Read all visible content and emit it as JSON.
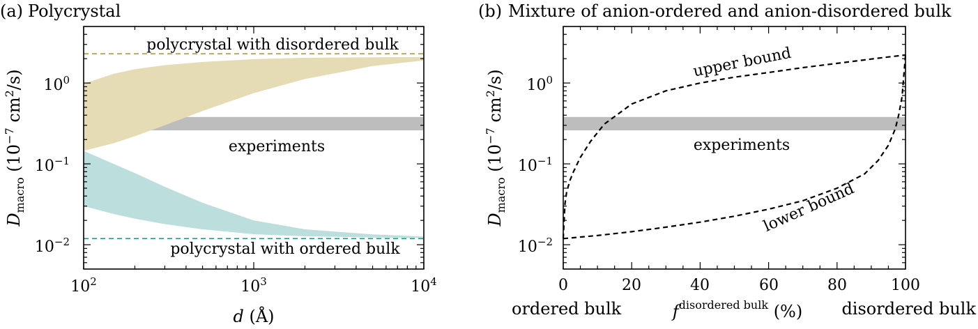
{
  "chart_data": [
    {
      "panel_label": "(a)",
      "title": "Polycrystal",
      "type": "area",
      "xlabel": {
        "symbol": "d",
        "unit": "(Å)"
      },
      "ylabel": {
        "symbol": "D",
        "subscript": "macro",
        "unit_prefix": "(10",
        "unit_exp": "−7",
        "unit_mid": " cm",
        "unit_exp2": "2",
        "unit_suffix": "/s)"
      },
      "xscale": "log",
      "yscale": "log",
      "xlim": [
        100,
        10000
      ],
      "ylim": [
        0.005,
        5
      ],
      "xticks": [
        {
          "value": 100,
          "base": "10",
          "exp": "2"
        },
        {
          "value": 1000,
          "base": "10",
          "exp": "3"
        },
        {
          "value": 10000,
          "base": "10",
          "exp": "4"
        }
      ],
      "yticks": [
        {
          "value": 0.01,
          "base": "10",
          "exp": "−2"
        },
        {
          "value": 0.1,
          "base": "10",
          "exp": "−1"
        },
        {
          "value": 1,
          "base": "10",
          "exp": "0"
        }
      ],
      "experiments_band": {
        "low": 0.26,
        "high": 0.38,
        "label": "experiments",
        "color": "#bdbdbd"
      },
      "series": [
        {
          "name": "polycrystal with disordered bulk",
          "color": "#e5dcb5",
          "limit": 2.3,
          "limit_color": "#a6942a",
          "x": [
            100,
            150,
            200,
            300,
            500,
            1000,
            2000,
            5000,
            10000
          ],
          "upper": [
            0.98,
            1.3,
            1.48,
            1.66,
            1.82,
            1.97,
            2.05,
            2.08,
            2.1
          ],
          "lower": [
            0.145,
            0.18,
            0.22,
            0.3,
            0.45,
            0.75,
            1.12,
            1.62,
            1.9
          ]
        },
        {
          "name": "polycrystal with ordered bulk",
          "color": "#bcdedd",
          "limit": 0.0119,
          "limit_color": "#2a8f85",
          "x": [
            100,
            150,
            200,
            300,
            500,
            1000,
            2000,
            5000,
            10000
          ],
          "upper": [
            0.145,
            0.1,
            0.077,
            0.052,
            0.033,
            0.02,
            0.0155,
            0.0134,
            0.0126
          ],
          "lower": [
            0.03,
            0.024,
            0.021,
            0.018,
            0.0155,
            0.0135,
            0.0127,
            0.0123,
            0.0122
          ]
        }
      ]
    },
    {
      "panel_label": "(b)",
      "title": "Mixture of anion-ordered and anion-disordered bulk",
      "type": "line",
      "xlabel": {
        "symbol": "f",
        "superscript": "disordered bulk",
        "unit": "(%)",
        "left_note": "ordered bulk",
        "right_note": "disordered bulk"
      },
      "ylabel": {
        "symbol": "D",
        "subscript": "macro",
        "unit_prefix": "(10",
        "unit_exp": "−7",
        "unit_mid": " cm",
        "unit_exp2": "2",
        "unit_suffix": "/s)"
      },
      "xscale": "linear",
      "yscale": "log",
      "xlim": [
        0,
        100
      ],
      "ylim": [
        0.005,
        5
      ],
      "xticks": [
        0,
        20,
        40,
        60,
        80,
        100
      ],
      "yticks": [
        {
          "value": 0.01,
          "base": "10",
          "exp": "−2"
        },
        {
          "value": 0.1,
          "base": "10",
          "exp": "−1"
        },
        {
          "value": 1,
          "base": "10",
          "exp": "0"
        }
      ],
      "experiments_band": {
        "low": 0.26,
        "high": 0.38,
        "label": "experiments",
        "color": "#bdbdbd"
      },
      "series": [
        {
          "name": "upper bound",
          "x": [
            0,
            0.5,
            1,
            2,
            3,
            5,
            8,
            12,
            20,
            30,
            40,
            50,
            60,
            70,
            80,
            90,
            95,
            100
          ],
          "y": [
            0.0119,
            0.032,
            0.045,
            0.063,
            0.08,
            0.12,
            0.19,
            0.31,
            0.55,
            0.8,
            1.0,
            1.18,
            1.35,
            1.55,
            1.75,
            1.98,
            2.1,
            2.22
          ]
        },
        {
          "name": "lower bound",
          "x": [
            0,
            10,
            20,
            30,
            40,
            50,
            60,
            70,
            80,
            88,
            92,
            95,
            97,
            98,
            99,
            100
          ],
          "y": [
            0.0119,
            0.013,
            0.0145,
            0.0165,
            0.019,
            0.0225,
            0.0275,
            0.035,
            0.05,
            0.075,
            0.11,
            0.17,
            0.27,
            0.4,
            0.68,
            2.22
          ]
        }
      ]
    }
  ]
}
